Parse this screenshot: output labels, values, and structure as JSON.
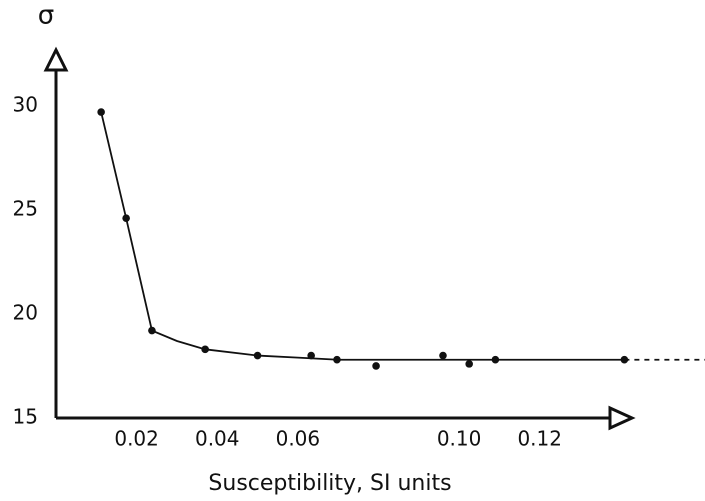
{
  "chart_data": {
    "type": "scatter",
    "x_label": "Susceptibility, SI units",
    "y_label": "σ",
    "xlim": [
      0,
      0.161
    ],
    "ylim": [
      15,
      32.2
    ],
    "xticks": [
      0.02,
      0.04,
      0.06,
      {
        "value": 0.1,
        "label": "0.10"
      },
      0.12
    ],
    "yticks": [
      15,
      20,
      25,
      30
    ],
    "series": [
      {
        "kind": "points",
        "color": "#111",
        "x": [
          0.0112,
          0.0174,
          0.0238,
          0.037,
          0.05,
          0.0633,
          0.0697,
          0.0794,
          0.096,
          0.1025,
          0.109,
          0.141
        ],
        "values": [
          29.7,
          24.6,
          19.2,
          18.3,
          18.0,
          18.0,
          17.8,
          17.5,
          18.0,
          17.6,
          17.8,
          17.8
        ]
      },
      {
        "kind": "line",
        "color": "#111",
        "x": [
          0.0112,
          0.0174,
          0.0238,
          0.03,
          0.037,
          0.05,
          0.06,
          0.07,
          0.1,
          0.141
        ],
        "values": [
          29.7,
          24.6,
          19.2,
          18.7,
          18.3,
          18.0,
          17.9,
          17.8,
          17.8,
          17.8
        ]
      },
      {
        "kind": "dashed",
        "color": "#111",
        "x": [
          0.141,
          0.161
        ],
        "values": [
          17.8,
          17.8
        ]
      }
    ]
  }
}
